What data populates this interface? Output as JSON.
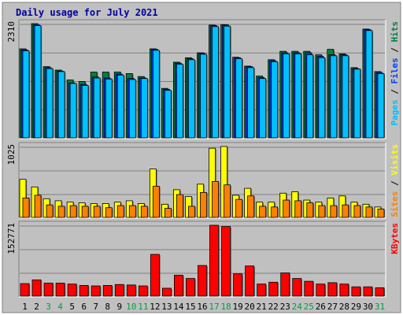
{
  "chart_data": {
    "type": "bar",
    "title": "Daily usage for July 2021",
    "days": [
      "1",
      "2",
      "3",
      "4",
      "5",
      "6",
      "7",
      "8",
      "9",
      "10",
      "11",
      "12",
      "13",
      "14",
      "15",
      "16",
      "17",
      "18",
      "19",
      "20",
      "21",
      "22",
      "23",
      "24",
      "25",
      "26",
      "27",
      "28",
      "29",
      "30",
      "31"
    ],
    "weekend_days": [
      "3",
      "4",
      "10",
      "11",
      "17",
      "18",
      "24",
      "25",
      "31"
    ],
    "panels": [
      {
        "id": "top",
        "ymax_label": "2310",
        "ymax": 2310,
        "label_parts": [
          "Pages",
          " / ",
          "Files",
          " / ",
          "Hits"
        ],
        "label_colors": [
          "#00c0ff",
          "#000000",
          "#0040ff",
          "#000000",
          "#008040"
        ],
        "series": [
          {
            "name": "Hits",
            "color": "#008040",
            "values": [
              1800,
              2310,
              1440,
              1370,
              1170,
              1140,
              1330,
              1330,
              1330,
              1300,
              1240,
              1800,
              1000,
              1530,
              1620,
              1720,
              2280,
              2290,
              1630,
              1450,
              1250,
              1580,
              1750,
              1750,
              1750,
              1680,
              1790,
              1700,
              1420,
              2200,
              1340
            ]
          },
          {
            "name": "Files",
            "color": "#0040ff",
            "values": [
              1780,
              2290,
              1420,
              1350,
              1110,
              1080,
              1230,
              1210,
              1290,
              1200,
              1210,
              1790,
              980,
              1510,
              1600,
              1710,
              2270,
              2280,
              1620,
              1440,
              1220,
              1560,
              1720,
              1720,
              1720,
              1650,
              1680,
              1680,
              1400,
              2190,
              1320
            ]
          },
          {
            "name": "Pages",
            "color": "#00c0ff",
            "values": [
              1760,
              2270,
              1400,
              1340,
              1100,
              1060,
              1210,
              1190,
              1270,
              1180,
              1200,
              1770,
              960,
              1490,
              1580,
              1690,
              2250,
              2260,
              1600,
              1420,
              1200,
              1540,
              1700,
              1700,
              1680,
              1620,
              1660,
              1660,
              1390,
              2170,
              1300
            ]
          }
        ]
      },
      {
        "id": "mid",
        "ymax_label": "1025",
        "ymax": 1025,
        "label_parts": [
          "Sites",
          " / ",
          "Visits"
        ],
        "label_colors": [
          "#ff8000",
          "#000000",
          "#ffff00"
        ],
        "series": [
          {
            "name": "Visits",
            "color": "#ffff00",
            "values": [
              550,
              440,
              270,
              240,
              220,
              210,
              200,
              200,
              220,
              240,
              200,
              700,
              190,
              400,
              300,
              480,
              1000,
              1025,
              320,
              420,
              220,
              220,
              350,
              370,
              250,
              220,
              280,
              310,
              220,
              190,
              150
            ]
          },
          {
            "name": "Sites",
            "color": "#ff8000",
            "values": [
              280,
              320,
              180,
              160,
              170,
              160,
              160,
              140,
              170,
              170,
              160,
              450,
              130,
              330,
              160,
              360,
              520,
              470,
              260,
              310,
              160,
              150,
              250,
              240,
              210,
              170,
              170,
              180,
              170,
              150,
              120
            ]
          }
        ]
      },
      {
        "id": "bot",
        "ymax_label": "152771",
        "ymax": 152771,
        "label_parts": [
          "KBytes"
        ],
        "label_colors": [
          "#ff0000"
        ],
        "series": [
          {
            "name": "KBytes",
            "color": "#ff0000",
            "values": [
              27000,
              35000,
              28000,
              28000,
              26000,
              23000,
              22000,
              23000,
              25000,
              24000,
              22000,
              90000,
              17000,
              45000,
              38000,
              66000,
              152771,
              150000,
              48000,
              65000,
              26000,
              30000,
              50000,
              38000,
              32000,
              26000,
              29000,
              26000,
              20000,
              20000,
              18000
            ]
          }
        ]
      }
    ]
  }
}
